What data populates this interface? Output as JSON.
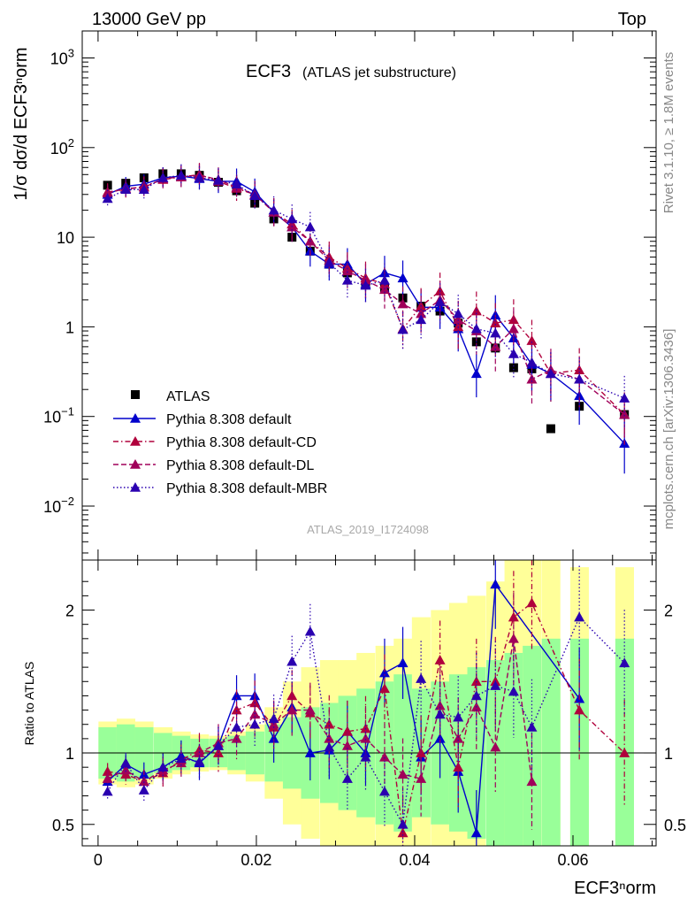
{
  "header": {
    "left": "13000 GeV pp",
    "right": "Top"
  },
  "side_labels": {
    "rivet": "Rivet 3.1.10, ≥ 1.8M events",
    "mcplots": "mcplots.cern.ch [arXiv:1306.3436]"
  },
  "plot_title": {
    "main": "ECF3",
    "sub": "(ATLAS jet substructure)"
  },
  "analysis_tag": "ATLAS_2019_I1724098",
  "x_label": "ECF3ⁿorm",
  "y_label_main": "1/σ dσ/d ECF3ⁿorm",
  "y_label_ratio": "Ratio to ATLAS",
  "chart_data": [
    {
      "type": "scatter",
      "yscale": "log",
      "ylim": [
        0.0025,
        2000
      ],
      "xlim": [
        -0.002,
        0.0705
      ],
      "x_ticks": [
        {
          "v": 0,
          "label": "0"
        },
        {
          "v": 0.02,
          "label": "0.02"
        },
        {
          "v": 0.04,
          "label": "0.04"
        },
        {
          "v": 0.06,
          "label": "0.06"
        }
      ],
      "y_ticks": [
        {
          "v": 0.01,
          "base": "10",
          "exp": "−2"
        },
        {
          "v": 0.1,
          "base": "10",
          "exp": "−1"
        },
        {
          "v": 1,
          "base": "1",
          "exp": ""
        },
        {
          "v": 10,
          "base": "10",
          "exp": ""
        },
        {
          "v": 100,
          "base": "10",
          "exp": "2"
        },
        {
          "v": 1000,
          "base": "10",
          "exp": "3"
        }
      ],
      "x": [
        0.0012,
        0.0035,
        0.0058,
        0.0082,
        0.0105,
        0.0128,
        0.0152,
        0.0175,
        0.0198,
        0.0222,
        0.0245,
        0.0268,
        0.0292,
        0.0315,
        0.0338,
        0.0362,
        0.0385,
        0.0408,
        0.0432,
        0.0455,
        0.0478,
        0.0502,
        0.0525,
        0.0548,
        0.0572,
        0.0608,
        0.0665
      ],
      "series": [
        {
          "name": "ATLAS",
          "color": "#000000",
          "marker": "square",
          "line": "none",
          "values": [
            38,
            40,
            46,
            51,
            51,
            49,
            41,
            33,
            24,
            16,
            10,
            7,
            5,
            4,
            3,
            2.7,
            2.1,
            1.7,
            1.5,
            1.1,
            0.68,
            0.58,
            0.35,
            0.34,
            0.073,
            0.13,
            0.105
          ]
        },
        {
          "name": "Pythia 8.308 default",
          "color": "#0000cc",
          "marker": "triangle",
          "line": "solid",
          "values": [
            30,
            37,
            39,
            46,
            48,
            45,
            42,
            42,
            32,
            19,
            13,
            7,
            5,
            5,
            3,
            4,
            3.5,
            1.65,
            1.65,
            0.95,
            0.3,
            1.35,
            0.75,
            0.38,
            0.3,
            0.17,
            0.05
          ]
        },
        {
          "name": "Pythia 8.308 default-CD",
          "color": "#b0003c",
          "marker": "triangle",
          "line": "dashdot",
          "values": [
            32,
            34,
            37,
            44,
            47,
            50,
            42,
            35,
            30,
            19,
            14,
            9,
            6,
            4.5,
            3.5,
            3,
            0.95,
            1.7,
            2.5,
            1.0,
            1.5,
            1.1,
            1.2,
            0.7,
            0.3,
            0.33,
            0.105
          ]
        },
        {
          "name": "Pythia 8.308 default-DL",
          "color": "#a0005a",
          "marker": "triangle",
          "line": "dashed",
          "values": [
            31,
            35,
            36,
            45,
            47,
            49,
            44,
            36,
            30,
            19,
            13,
            9,
            5.5,
            4.2,
            3.3,
            2.6,
            1.8,
            1.4,
            2.0,
            1.2,
            0.9,
            0.6,
            0.95,
            0.26,
            0.33,
            0.26,
            0.105
          ]
        },
        {
          "name": "Pythia 8.308 default-MBR",
          "color": "#2a00b0",
          "marker": "triangle",
          "line": "dotted",
          "values": [
            27,
            34,
            34,
            46,
            49,
            46,
            43,
            39,
            29,
            20,
            16,
            13,
            5.2,
            3.3,
            2.9,
            3.3,
            0.93,
            1.2,
            1.9,
            1.4,
            0.95,
            0.85,
            0.5,
            0.4,
            0.3,
            0.26,
            0.16
          ]
        }
      ]
    },
    {
      "type": "scatter",
      "ylim": [
        0.35,
        2.35
      ],
      "y_ticks": [
        {
          "v": 0.5,
          "label": "0.5"
        },
        {
          "v": 1,
          "label": "1"
        },
        {
          "v": 2,
          "label": "2"
        }
      ],
      "band_inner": [
        0.18,
        0.2,
        0.18,
        0.14,
        0.12,
        0.1,
        0.1,
        0.12,
        0.15,
        0.2,
        0.25,
        0.32,
        0.35,
        0.4,
        0.45,
        0.5,
        0.55,
        0.45,
        0.5,
        0.55,
        0.6,
        0.65,
        0.7,
        0.75,
        0.8,
        0.8,
        0.8
      ],
      "band_outer": [
        0.22,
        0.24,
        0.22,
        0.18,
        0.15,
        0.13,
        0.12,
        0.15,
        0.2,
        0.32,
        0.5,
        0.6,
        0.65,
        0.65,
        0.7,
        0.75,
        0.8,
        0.95,
        1.0,
        1.05,
        1.1,
        1.2,
        1.4,
        1.4,
        1.4,
        1.3,
        1.3
      ],
      "series": [
        {
          "name": "Pythia 8.308 default",
          "values": [
            0.8,
            0.92,
            0.85,
            0.9,
            0.98,
            0.93,
            1.05,
            1.4,
            1.4,
            1.1,
            1.32,
            1.0,
            1.02,
            1.15,
            1.0,
            1.56,
            1.63,
            0.97,
            1.1,
            0.87,
            0.44,
            2.18,
            null,
            null,
            null,
            1.38,
            null
          ]
        },
        {
          "name": "Pythia 8.308 default-CD",
          "values": [
            0.87,
            0.85,
            0.8,
            0.86,
            0.95,
            1.02,
            1.0,
            1.3,
            1.35,
            1.18,
            1.4,
            1.28,
            1.2,
            1.15,
            1.17,
            1.45,
            0.44,
            1.0,
            1.65,
            0.9,
            1.5,
            1.5,
            1.95,
            2.05,
            null,
            1.3,
            1.0
          ]
        },
        {
          "name": "Pythia 8.308 default-DL",
          "values": [
            0.82,
            0.88,
            0.8,
            0.88,
            0.93,
            1.0,
            1.07,
            1.1,
            1.27,
            1.2,
            1.3,
            1.3,
            1.1,
            1.05,
            1.1,
            0.97,
            0.85,
            0.82,
            1.33,
            1.1,
            1.32,
            1.04,
            1.8,
            0.8,
            null,
            null,
            null
          ]
        },
        {
          "name": "Pythia 8.308 default-MBR",
          "values": [
            0.73,
            0.93,
            0.74,
            0.9,
            0.96,
            0.94,
            1.05,
            1.18,
            1.2,
            1.24,
            1.64,
            1.85,
            1.04,
            0.82,
            0.97,
            0.73,
            0.5,
            1.52,
            1.27,
            1.25,
            1.4,
            1.47,
            1.43,
            1.18,
            null,
            1.95,
            1.63
          ]
        }
      ]
    }
  ]
}
